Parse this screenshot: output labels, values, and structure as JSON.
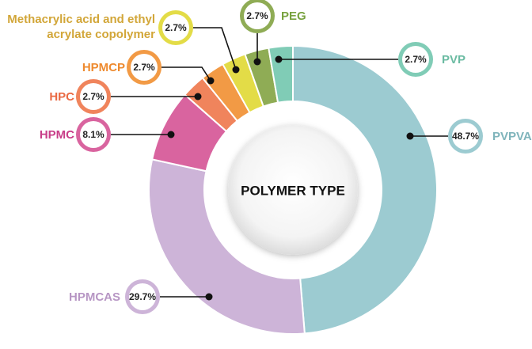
{
  "chart_data": {
    "type": "donut",
    "title": "POLYMER TYPE",
    "categories": [
      "PVPVA",
      "HPMCAS",
      "HPMC",
      "HPC",
      "HPMCP",
      "Methacrylic acid and ethyl acrylate copolymer",
      "PEG",
      "PVP"
    ],
    "values": [
      48.7,
      29.7,
      8.1,
      2.7,
      2.7,
      2.7,
      2.7,
      2.7
    ],
    "value_labels": [
      "48.7%",
      "29.7%",
      "8.1%",
      "2.7%",
      "2.7%",
      "2.7%",
      "2.7%",
      "2.7%"
    ],
    "colors": [
      "#9ccbd1",
      "#cdb4d8",
      "#d9649f",
      "#f0845c",
      "#f29a45",
      "#e3dc47",
      "#8fac55",
      "#80ccb6"
    ],
    "label_colors": [
      "#7fb4bb",
      "#b796c4",
      "#c83d88",
      "#ea6a44",
      "#ee8a2e",
      "#d2a638",
      "#78a23f",
      "#6bbba2"
    ]
  }
}
